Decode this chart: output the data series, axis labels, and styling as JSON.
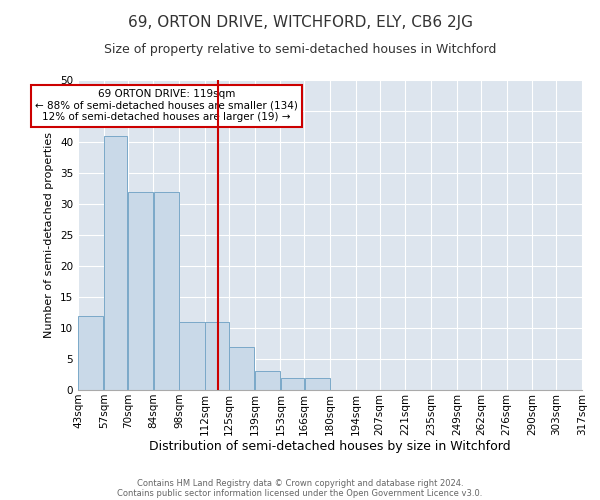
{
  "title": "69, ORTON DRIVE, WITCHFORD, ELY, CB6 2JG",
  "subtitle": "Size of property relative to semi-detached houses in Witchford",
  "xlabel": "Distribution of semi-detached houses by size in Witchford",
  "ylabel": "Number of semi-detached properties",
  "bin_edges": [
    43,
    57,
    70,
    84,
    98,
    112,
    125,
    139,
    153,
    166,
    180,
    194,
    207,
    221,
    235,
    249,
    262,
    276,
    290,
    303,
    317
  ],
  "bin_labels": [
    "43sqm",
    "57sqm",
    "70sqm",
    "84sqm",
    "98sqm",
    "112sqm",
    "125sqm",
    "139sqm",
    "153sqm",
    "166sqm",
    "180sqm",
    "194sqm",
    "207sqm",
    "221sqm",
    "235sqm",
    "249sqm",
    "262sqm",
    "276sqm",
    "290sqm",
    "303sqm",
    "317sqm"
  ],
  "counts": [
    12,
    41,
    32,
    32,
    11,
    11,
    7,
    3,
    2,
    2,
    0,
    0,
    0,
    0,
    0,
    0,
    0,
    0,
    0,
    0
  ],
  "bar_color": "#c9d9e8",
  "bar_edge_color": "#7aa8c8",
  "vline_x": 119,
  "vline_color": "#cc0000",
  "ylim": [
    0,
    50
  ],
  "annotation_title": "69 ORTON DRIVE: 119sqm",
  "annotation_line1": "← 88% of semi-detached houses are smaller (134)",
  "annotation_line2": "12% of semi-detached houses are larger (19) →",
  "annotation_box_color": "#cc0000",
  "background_color": "#dde5ee",
  "footer_line1": "Contains HM Land Registry data © Crown copyright and database right 2024.",
  "footer_line2": "Contains public sector information licensed under the Open Government Licence v3.0.",
  "title_fontsize": 11,
  "subtitle_fontsize": 9,
  "xlabel_fontsize": 9,
  "ylabel_fontsize": 8,
  "tick_fontsize": 7.5
}
